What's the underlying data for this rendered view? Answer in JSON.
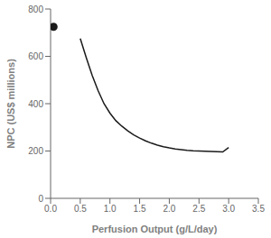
{
  "chart_data": {
    "type": "line",
    "xlabel": "Perfusion Output (g/L/day)",
    "ylabel": "NPC (US$ millions)",
    "series": [
      {
        "type": "scatter",
        "marker": "o",
        "color": "#1a1a1a",
        "x": [
          0.05
        ],
        "values": [
          725
        ]
      },
      {
        "type": "line",
        "line_style": "solid",
        "color": "#1a1a1a",
        "x": [
          0.5,
          0.6,
          0.7,
          0.8,
          0.9,
          1.0,
          1.1,
          1.2,
          1.3,
          1.4,
          1.5,
          1.6,
          1.7,
          1.8,
          1.9,
          2.0,
          2.1,
          2.2,
          2.3,
          2.4,
          2.5,
          2.6,
          2.7,
          2.8,
          2.9,
          3.0
        ],
        "values": [
          675,
          595,
          520,
          455,
          400,
          360,
          328,
          305,
          285,
          268,
          255,
          243,
          233,
          225,
          218,
          213,
          209,
          206,
          203,
          201,
          200,
          199,
          198,
          197,
          196,
          215
        ]
      }
    ],
    "xlim": [
      0,
      3.5
    ],
    "ylim": [
      0,
      800
    ],
    "xticks": [
      {
        "value": 0,
        "label": "0.0"
      },
      0.5,
      {
        "value": 1,
        "label": "1.0"
      },
      1.5,
      {
        "value": 2,
        "label": "2.0"
      },
      2.5,
      {
        "value": 3,
        "label": "3.0"
      },
      3.5
    ],
    "yticks": [
      0,
      200,
      400,
      600,
      800
    ],
    "grid": false
  }
}
